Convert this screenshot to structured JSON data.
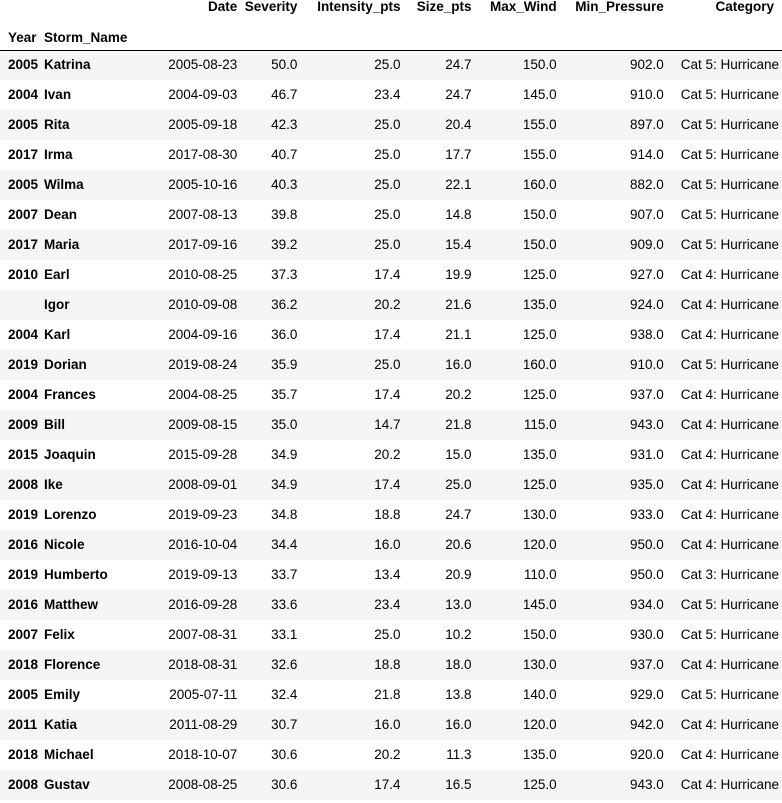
{
  "columns": [
    "Date",
    "Severity",
    "Intensity_pts",
    "Size_pts",
    "Max_Wind",
    "Min_Pressure",
    "Category"
  ],
  "index_names": [
    "Year",
    "Storm_Name"
  ],
  "rows": [
    {
      "year": "2005",
      "name": "Katrina",
      "date": "2005-08-23",
      "severity": "50.0",
      "intensity": "25.0",
      "size": "24.7",
      "wind": "150.0",
      "pressure": "902.0",
      "category": "Cat 5: Hurricane"
    },
    {
      "year": "2004",
      "name": "Ivan",
      "date": "2004-09-03",
      "severity": "46.7",
      "intensity": "23.4",
      "size": "24.7",
      "wind": "145.0",
      "pressure": "910.0",
      "category": "Cat 5: Hurricane"
    },
    {
      "year": "2005",
      "name": "Rita",
      "date": "2005-09-18",
      "severity": "42.3",
      "intensity": "25.0",
      "size": "20.4",
      "wind": "155.0",
      "pressure": "897.0",
      "category": "Cat 5: Hurricane"
    },
    {
      "year": "2017",
      "name": "Irma",
      "date": "2017-08-30",
      "severity": "40.7",
      "intensity": "25.0",
      "size": "17.7",
      "wind": "155.0",
      "pressure": "914.0",
      "category": "Cat 5: Hurricane"
    },
    {
      "year": "2005",
      "name": "Wilma",
      "date": "2005-10-16",
      "severity": "40.3",
      "intensity": "25.0",
      "size": "22.1",
      "wind": "160.0",
      "pressure": "882.0",
      "category": "Cat 5: Hurricane"
    },
    {
      "year": "2007",
      "name": "Dean",
      "date": "2007-08-13",
      "severity": "39.8",
      "intensity": "25.0",
      "size": "14.8",
      "wind": "150.0",
      "pressure": "907.0",
      "category": "Cat 5: Hurricane"
    },
    {
      "year": "2017",
      "name": "Maria",
      "date": "2017-09-16",
      "severity": "39.2",
      "intensity": "25.0",
      "size": "15.4",
      "wind": "150.0",
      "pressure": "909.0",
      "category": "Cat 5: Hurricane"
    },
    {
      "year": "2010",
      "name": "Earl",
      "date": "2010-08-25",
      "severity": "37.3",
      "intensity": "17.4",
      "size": "19.9",
      "wind": "125.0",
      "pressure": "927.0",
      "category": "Cat 4: Hurricane"
    },
    {
      "year": "",
      "name": "Igor",
      "date": "2010-09-08",
      "severity": "36.2",
      "intensity": "20.2",
      "size": "21.6",
      "wind": "135.0",
      "pressure": "924.0",
      "category": "Cat 4: Hurricane"
    },
    {
      "year": "2004",
      "name": "Karl",
      "date": "2004-09-16",
      "severity": "36.0",
      "intensity": "17.4",
      "size": "21.1",
      "wind": "125.0",
      "pressure": "938.0",
      "category": "Cat 4: Hurricane"
    },
    {
      "year": "2019",
      "name": "Dorian",
      "date": "2019-08-24",
      "severity": "35.9",
      "intensity": "25.0",
      "size": "16.0",
      "wind": "160.0",
      "pressure": "910.0",
      "category": "Cat 5: Hurricane"
    },
    {
      "year": "2004",
      "name": "Frances",
      "date": "2004-08-25",
      "severity": "35.7",
      "intensity": "17.4",
      "size": "20.2",
      "wind": "125.0",
      "pressure": "937.0",
      "category": "Cat 4: Hurricane"
    },
    {
      "year": "2009",
      "name": "Bill",
      "date": "2009-08-15",
      "severity": "35.0",
      "intensity": "14.7",
      "size": "21.8",
      "wind": "115.0",
      "pressure": "943.0",
      "category": "Cat 4: Hurricane"
    },
    {
      "year": "2015",
      "name": "Joaquin",
      "date": "2015-09-28",
      "severity": "34.9",
      "intensity": "20.2",
      "size": "15.0",
      "wind": "135.0",
      "pressure": "931.0",
      "category": "Cat 4: Hurricane"
    },
    {
      "year": "2008",
      "name": "Ike",
      "date": "2008-09-01",
      "severity": "34.9",
      "intensity": "17.4",
      "size": "25.0",
      "wind": "125.0",
      "pressure": "935.0",
      "category": "Cat 4: Hurricane"
    },
    {
      "year": "2019",
      "name": "Lorenzo",
      "date": "2019-09-23",
      "severity": "34.8",
      "intensity": "18.8",
      "size": "24.7",
      "wind": "130.0",
      "pressure": "933.0",
      "category": "Cat 4: Hurricane"
    },
    {
      "year": "2016",
      "name": "Nicole",
      "date": "2016-10-04",
      "severity": "34.4",
      "intensity": "16.0",
      "size": "20.6",
      "wind": "120.0",
      "pressure": "950.0",
      "category": "Cat 4: Hurricane"
    },
    {
      "year": "2019",
      "name": "Humberto",
      "date": "2019-09-13",
      "severity": "33.7",
      "intensity": "13.4",
      "size": "20.9",
      "wind": "110.0",
      "pressure": "950.0",
      "category": "Cat 3: Hurricane"
    },
    {
      "year": "2016",
      "name": "Matthew",
      "date": "2016-09-28",
      "severity": "33.6",
      "intensity": "23.4",
      "size": "13.0",
      "wind": "145.0",
      "pressure": "934.0",
      "category": "Cat 5: Hurricane"
    },
    {
      "year": "2007",
      "name": "Felix",
      "date": "2007-08-31",
      "severity": "33.1",
      "intensity": "25.0",
      "size": "10.2",
      "wind": "150.0",
      "pressure": "930.0",
      "category": "Cat 5: Hurricane"
    },
    {
      "year": "2018",
      "name": "Florence",
      "date": "2018-08-31",
      "severity": "32.6",
      "intensity": "18.8",
      "size": "18.0",
      "wind": "130.0",
      "pressure": "937.0",
      "category": "Cat 4: Hurricane"
    },
    {
      "year": "2005",
      "name": "Emily",
      "date": "2005-07-11",
      "severity": "32.4",
      "intensity": "21.8",
      "size": "13.8",
      "wind": "140.0",
      "pressure": "929.0",
      "category": "Cat 5: Hurricane"
    },
    {
      "year": "2011",
      "name": "Katia",
      "date": "2011-08-29",
      "severity": "30.7",
      "intensity": "16.0",
      "size": "16.0",
      "wind": "120.0",
      "pressure": "942.0",
      "category": "Cat 4: Hurricane"
    },
    {
      "year": "2018",
      "name": "Michael",
      "date": "2018-10-07",
      "severity": "30.6",
      "intensity": "20.2",
      "size": "11.3",
      "wind": "135.0",
      "pressure": "920.0",
      "category": "Cat 4: Hurricane"
    },
    {
      "year": "2008",
      "name": "Gustav",
      "date": "2008-08-25",
      "severity": "30.6",
      "intensity": "17.4",
      "size": "16.5",
      "wind": "125.0",
      "pressure": "943.0",
      "category": "Cat 4: Hurricane"
    }
  ]
}
